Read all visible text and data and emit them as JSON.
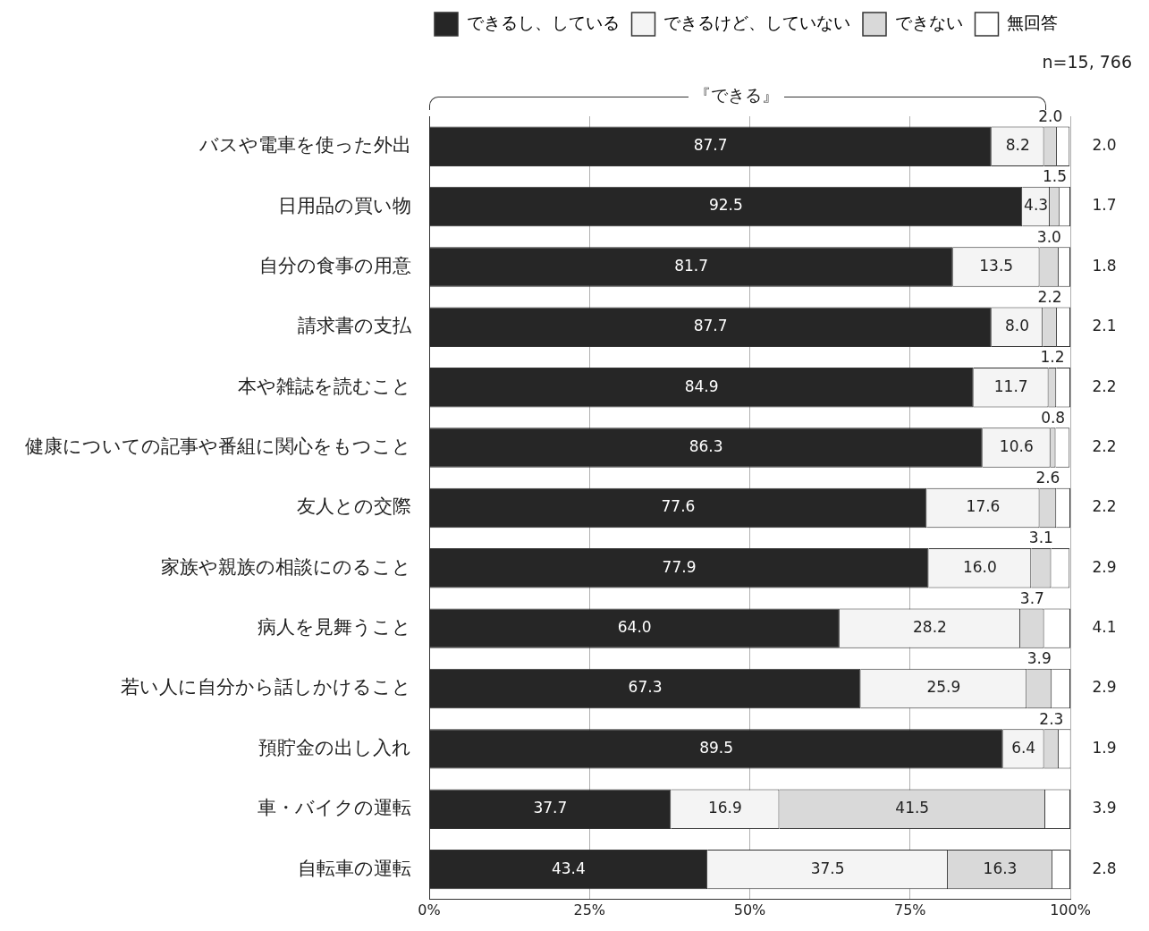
{
  "chart_data": {
    "type": "bar",
    "orientation": "horizontal",
    "stacked": true,
    "categories": [
      "バスや電車を使った外出",
      "日用品の買い物",
      "自分の食事の用意",
      "請求書の支払",
      "本や雑誌を読むこと",
      "健康についての記事や番組に関心をもつこと",
      "友人との交際",
      "家族や親族の相談にのること",
      "病人を見舞うこと",
      "若い人に自分から話しかけること",
      "預貯金の出し入れ",
      "車・バイクの運転",
      "自転車の運転"
    ],
    "series": [
      {
        "name": "できるし、している",
        "color": "#262626",
        "values": [
          87.7,
          92.5,
          81.7,
          87.7,
          84.9,
          86.3,
          77.6,
          77.9,
          64.0,
          67.3,
          89.5,
          37.7,
          43.4
        ],
        "value_labels": [
          "87.7",
          "92.5",
          "81.7",
          "87.7",
          "84.9",
          "86.3",
          "77.6",
          "77.9",
          "64.0",
          "67.3",
          "89.5",
          "37.7",
          "43.4"
        ]
      },
      {
        "name": "できるけど、していない",
        "color": "#f4f4f4",
        "values": [
          8.2,
          4.3,
          13.5,
          8.0,
          11.7,
          10.6,
          17.6,
          16.0,
          28.2,
          25.9,
          6.4,
          16.9,
          37.5
        ],
        "value_labels": [
          "8.2",
          "4.3",
          "13.5",
          "8.0",
          "11.7",
          "10.6",
          "17.6",
          "16.0",
          "28.2",
          "25.9",
          "6.4",
          "16.9",
          "37.5"
        ]
      },
      {
        "name": "できない",
        "color": "#d9d9d9",
        "values": [
          2.0,
          1.5,
          3.0,
          2.2,
          1.2,
          0.8,
          2.6,
          3.1,
          3.7,
          3.9,
          2.3,
          41.5,
          16.3
        ],
        "value_labels": [
          "2.0",
          "1.5",
          "3.0",
          "2.2",
          "1.2",
          "0.8",
          "2.6",
          "3.1",
          "3.7",
          "3.9",
          "2.3",
          "41.5",
          "16.3"
        ]
      },
      {
        "name": "無回答",
        "color": "#ffffff",
        "values": [
          2.0,
          1.7,
          1.8,
          2.1,
          2.2,
          2.2,
          2.2,
          2.9,
          4.1,
          2.9,
          1.9,
          3.9,
          2.8
        ],
        "value_labels": [
          "2.0",
          "1.7",
          "1.8",
          "2.1",
          "2.2",
          "2.2",
          "2.2",
          "2.9",
          "4.1",
          "2.9",
          "1.9",
          "3.9",
          "2.8"
        ]
      }
    ],
    "xlim": [
      0,
      100
    ],
    "xticks": [
      {
        "value": 0,
        "label": "0%"
      },
      {
        "value": 25,
        "label": "25%"
      },
      {
        "value": 50,
        "label": "50%"
      },
      {
        "value": 75,
        "label": "75%"
      },
      {
        "value": 100,
        "label": "100%"
      }
    ],
    "grid": "x",
    "legend": "top right",
    "annotations": [
      "n=15, 766",
      "『できる』"
    ]
  }
}
